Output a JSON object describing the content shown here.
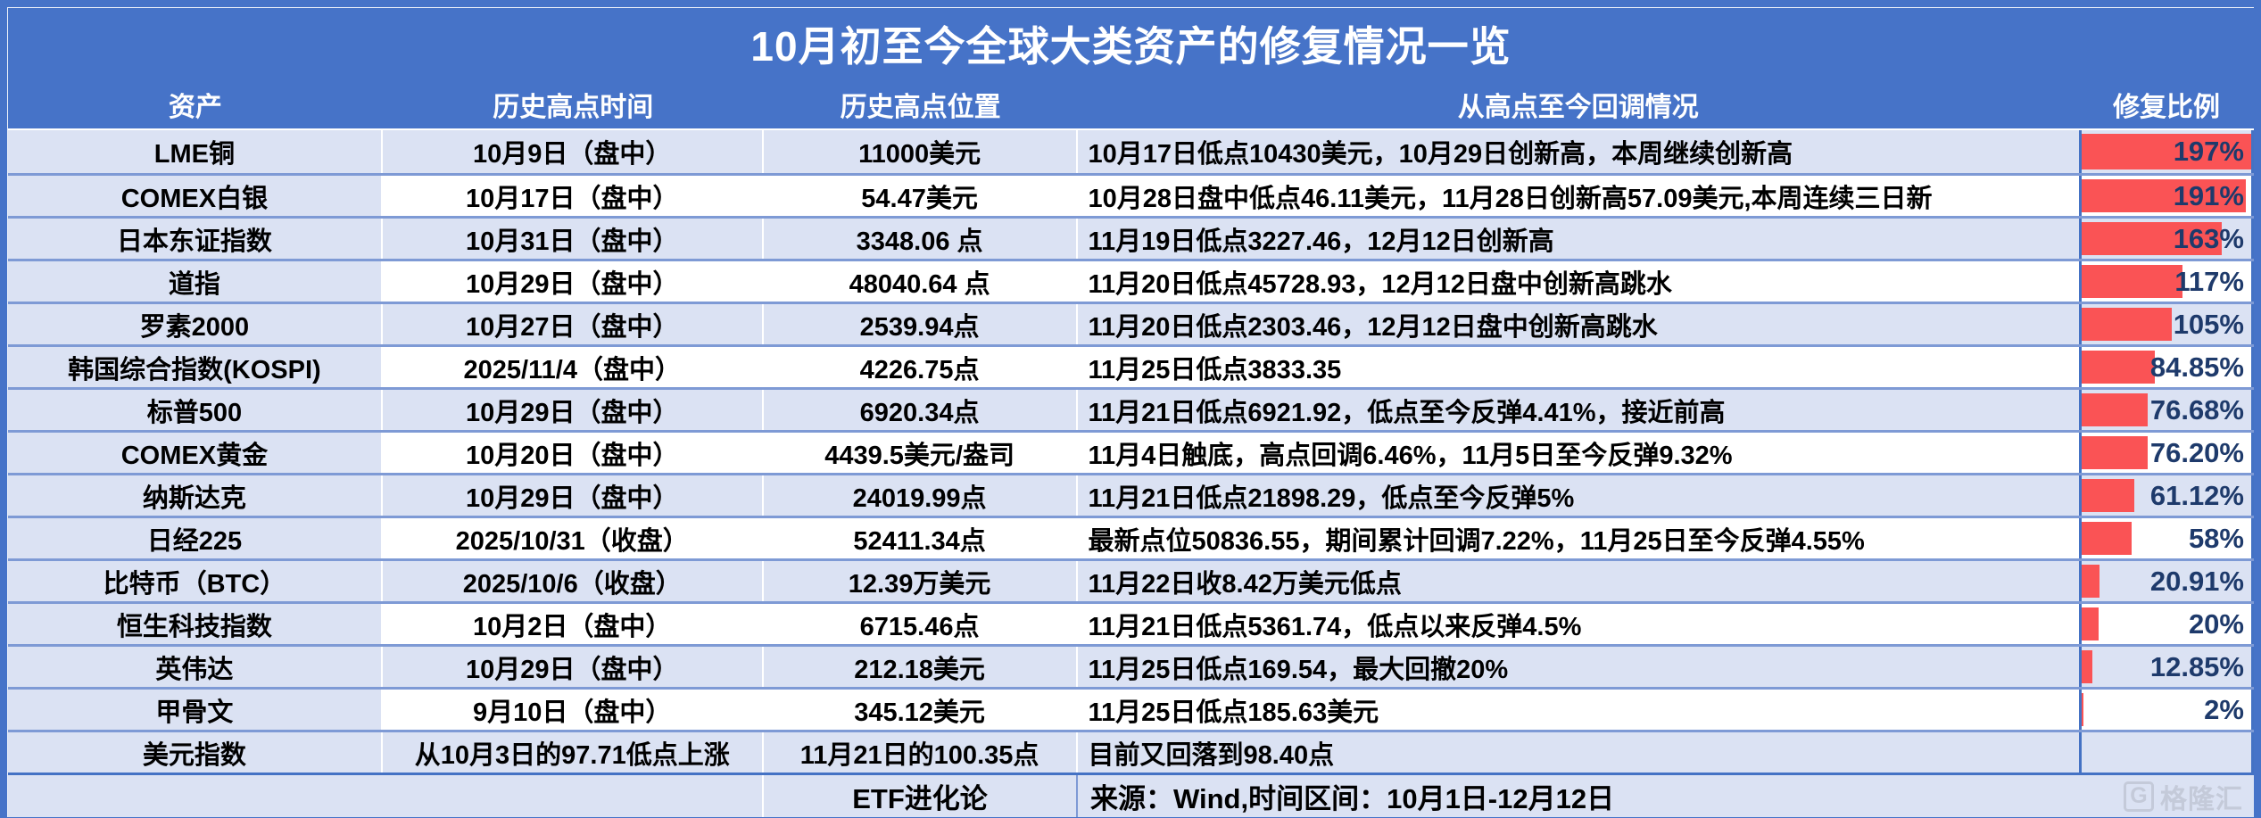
{
  "title": "10月初至今全球大类资产的修复情况一览",
  "table": {
    "columns": [
      "资产",
      "历史高点时间",
      "历史高点位置",
      "从高点至今回调情况",
      "修复比例"
    ],
    "rows": [
      {
        "asset": "LME铜",
        "peak_time": "10月9日（盘中）",
        "peak_level": "11000美元",
        "drawdown": "10月17日低点10430美元，10月29日创新高，本周继续创新高",
        "recovery_label": "197%",
        "recovery_value": 197
      },
      {
        "asset": "COMEX白银",
        "peak_time": "10月17日（盘中）",
        "peak_level": "54.47美元",
        "drawdown": "10月28日盘中低点46.11美元，11月28日创新高57.09美元,本周连续三日新",
        "recovery_label": "191%",
        "recovery_value": 191
      },
      {
        "asset": "日本东证指数",
        "peak_time": "10月31日（盘中）",
        "peak_level": "3348.06 点",
        "drawdown": "11月19日低点3227.46，12月12日创新高",
        "recovery_label": "163%",
        "recovery_value": 163
      },
      {
        "asset": "道指",
        "peak_time": "10月29日（盘中）",
        "peak_level": "48040.64 点",
        "drawdown": "11月20日低点45728.93，12月12日盘中创新高跳水",
        "recovery_label": "117%",
        "recovery_value": 117
      },
      {
        "asset": "罗素2000",
        "peak_time": "10月27日（盘中）",
        "peak_level": "2539.94点",
        "drawdown": "11月20日低点2303.46，12月12日盘中创新高跳水",
        "recovery_label": "105%",
        "recovery_value": 105
      },
      {
        "asset": "韩国综合指数(KOSPI)",
        "peak_time": "2025/11/4（盘中）",
        "peak_level": "4226.75点",
        "drawdown": "11月25日低点3833.35",
        "recovery_label": "84.85%",
        "recovery_value": 84.85
      },
      {
        "asset": "标普500",
        "peak_time": "10月29日（盘中）",
        "peak_level": "6920.34点",
        "drawdown": "11月21日低点6921.92，低点至今反弹4.41%，接近前高",
        "recovery_label": "76.68%",
        "recovery_value": 76.68
      },
      {
        "asset": "COMEX黄金",
        "peak_time": "10月20日（盘中）",
        "peak_level": "4439.5美元/盎司",
        "drawdown": "11月4日触底，高点回调6.46%，11月5日至今反弹9.32%",
        "recovery_label": "76.20%",
        "recovery_value": 76.2
      },
      {
        "asset": "纳斯达克",
        "peak_time": "10月29日（盘中）",
        "peak_level": "24019.99点",
        "drawdown": "11月21日低点21898.29，低点至今反弹5%",
        "recovery_label": "61.12%",
        "recovery_value": 61.12
      },
      {
        "asset": "日经225",
        "peak_time": "2025/10/31（收盘）",
        "peak_level": "52411.34点",
        "drawdown": "最新点位50836.55，期间累计回调7.22%，11月25日至今反弹4.55%",
        "recovery_label": "58%",
        "recovery_value": 58
      },
      {
        "asset": "比特币（BTC）",
        "peak_time": "2025/10/6（收盘）",
        "peak_level": "12.39万美元",
        "drawdown": "11月22日收8.42万美元低点",
        "recovery_label": "20.91%",
        "recovery_value": 20.91
      },
      {
        "asset": "恒生科技指数",
        "peak_time": "10月2日（盘中）",
        "peak_level": "6715.46点",
        "drawdown": "11月21日低点5361.74，低点以来反弹4.5%",
        "recovery_label": "20%",
        "recovery_value": 20
      },
      {
        "asset": "英伟达",
        "peak_time": "10月29日（盘中）",
        "peak_level": "212.18美元",
        "drawdown": "11月25日低点169.54，最大回撤20%",
        "recovery_label": "12.85%",
        "recovery_value": 12.85
      },
      {
        "asset": "甲骨文",
        "peak_time": "9月10日（盘中）",
        "peak_level": "345.12美元",
        "drawdown": "11月25日低点185.63美元",
        "recovery_label": "2%",
        "recovery_value": 2
      },
      {
        "asset": "美元指数",
        "peak_time": "从10月3日的97.71低点上涨",
        "peak_level": "11月21日的100.35点",
        "drawdown": "目前又回落到98.40点",
        "recovery_label": "",
        "recovery_value": null
      }
    ]
  },
  "footer": {
    "brand": "ETF进化论",
    "source": "来源：Wind,时间区间：10月1日-12月12日"
  },
  "watermark": {
    "logo_letter": "G",
    "label": "格隆汇"
  },
  "colors": {
    "background_blue": "#4673c8",
    "header_blue": "#4673c8",
    "stripe_light": "#dbe2f3",
    "stripe_white": "#ffffff",
    "bar_red": "#fa5355",
    "percent_navy": "#1e3a6b",
    "row_divider": "#7e9ad5",
    "strong_border": "#4472c4",
    "watermark_gray": "#c3c9d8"
  },
  "chart_data": {
    "type": "table",
    "title": "10月初至今全球大类资产的修复情况一览",
    "columns": [
      "资产",
      "历史高点时间",
      "历史高点位置",
      "从高点至今回调情况",
      "修复比例"
    ],
    "rows": [
      [
        "LME铜",
        "10月9日（盘中）",
        "11000美元",
        "10月17日低点10430美元，10月29日创新高，本周继续创新高",
        "197%"
      ],
      [
        "COMEX白银",
        "10月17日（盘中）",
        "54.47美元",
        "10月28日盘中低点46.11美元，11月28日创新高57.09美元,本周连续三日新",
        "191%"
      ],
      [
        "日本东证指数",
        "10月31日（盘中）",
        "3348.06 点",
        "11月19日低点3227.46，12月12日创新高",
        "163%"
      ],
      [
        "道指",
        "10月29日（盘中）",
        "48040.64 点",
        "11月20日低点45728.93，12月12日盘中创新高跳水",
        "117%"
      ],
      [
        "罗素2000",
        "10月27日（盘中）",
        "2539.94点",
        "11月20日低点2303.46，12月12日盘中创新高跳水",
        "105%"
      ],
      [
        "韩国综合指数(KOSPI)",
        "2025/11/4（盘中）",
        "4226.75点",
        "11月25日低点3833.35",
        "84.85%"
      ],
      [
        "标普500",
        "10月29日（盘中）",
        "6920.34点",
        "11月21日低点6921.92，低点至今反弹4.41%，接近前高",
        "76.68%"
      ],
      [
        "COMEX黄金",
        "10月20日（盘中）",
        "4439.5美元/盎司",
        "11月4日触底，高点回调6.46%，11月5日至今反弹9.32%",
        "76.20%"
      ],
      [
        "纳斯达克",
        "10月29日（盘中）",
        "24019.99点",
        "11月21日低点21898.29，低点至今反弹5%",
        "61.12%"
      ],
      [
        "日经225",
        "2025/10/31（收盘）",
        "52411.34点",
        "最新点位50836.55，期间累计回调7.22%，11月25日至今反弹4.55%",
        "58%"
      ],
      [
        "比特币（BTC）",
        "2025/10/6（收盘）",
        "12.39万美元",
        "11月22日收8.42万美元低点",
        "20.91%"
      ],
      [
        "恒生科技指数",
        "10月2日（盘中）",
        "6715.46点",
        "11月21日低点5361.74，低点以来反弹4.5%",
        "20%"
      ],
      [
        "英伟达",
        "10月29日（盘中）",
        "212.18美元",
        "11月25日低点169.54，最大回撤20%",
        "12.85%"
      ],
      [
        "甲骨文",
        "9月10日（盘中）",
        "345.12美元",
        "11月25日低点185.63美元",
        "2%"
      ],
      [
        "美元指数",
        "从10月3日的97.71低点上涨",
        "11月21日的100.35点",
        "目前又回落到98.40点",
        ""
      ]
    ],
    "bar_column": "修复比例",
    "bar_values": [
      197,
      191,
      163,
      117,
      105,
      84.85,
      76.68,
      76.2,
      61.12,
      58,
      20.91,
      20,
      12.85,
      2,
      null
    ],
    "bar_max": 197,
    "bar_color": "#fa5355",
    "layout": "data bars fill 修复比例 cells proportional to value/197, striped rows, source footer"
  }
}
